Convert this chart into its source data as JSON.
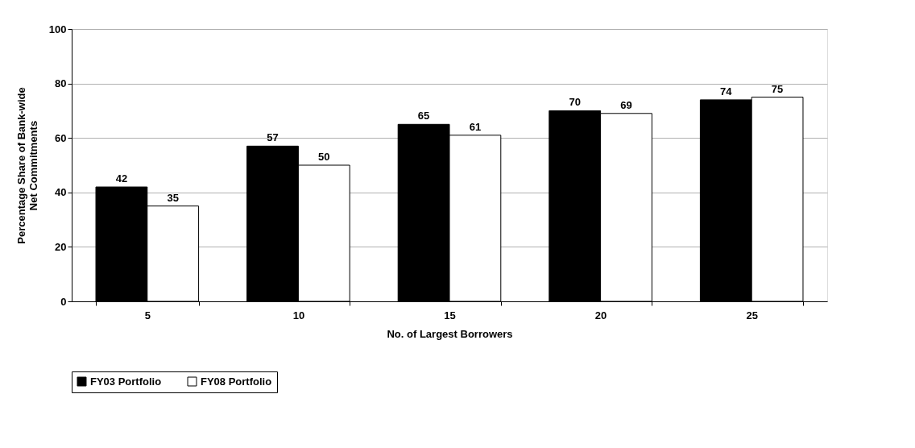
{
  "chart_data": {
    "type": "bar",
    "xlabel": "No. of Largest Borrowers",
    "ylabel": "Percentage Share of Bank-wide Net Commitments",
    "categories": [
      "5",
      "10",
      "15",
      "20",
      "25"
    ],
    "series": [
      {
        "name": "FY03 Portfolio",
        "color": "#000000",
        "values": [
          42,
          57,
          65,
          70,
          74
        ]
      },
      {
        "name": "FY08 Portfolio",
        "color": "#ffffff",
        "values": [
          35,
          50,
          61,
          69,
          75
        ]
      }
    ],
    "ylim": [
      0,
      100
    ],
    "yticks": [
      0,
      20,
      40,
      60,
      80,
      100
    ],
    "grid": "y",
    "legend": "bottom",
    "data_labels": true
  }
}
